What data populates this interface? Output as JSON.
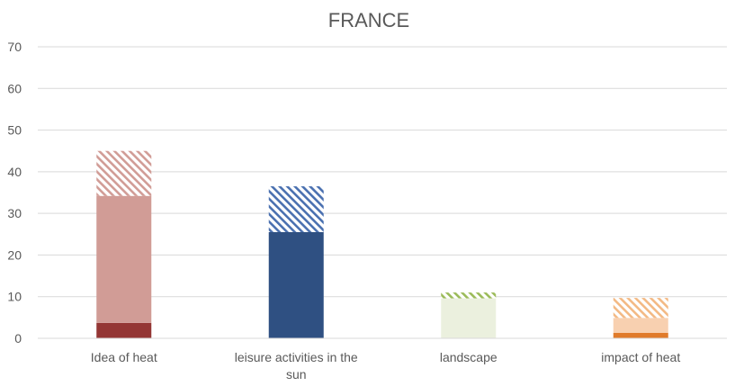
{
  "chart_data": {
    "type": "bar",
    "title": "FRANCE",
    "xlabel": "",
    "ylabel": "",
    "ylim": [
      0,
      70
    ],
    "yticks": [
      0,
      10,
      20,
      30,
      40,
      50,
      60,
      70
    ],
    "grid": true,
    "legend": "none",
    "categories": [
      [
        "Idea of heat"
      ],
      [
        "leisure activities in the",
        "sun"
      ],
      [
        "landscape"
      ],
      [
        "impact of heat"
      ]
    ],
    "stacks": [
      {
        "segments": [
          {
            "value": 3.7,
            "color": "#943634",
            "style": "solid"
          },
          {
            "value": 30.5,
            "color": "#d19c96",
            "style": "solid"
          },
          {
            "value": 10.8,
            "color": "#d19c96",
            "style": "hatched"
          }
        ]
      },
      {
        "segments": [
          {
            "value": 25.5,
            "color": "#2f5082",
            "style": "solid"
          },
          {
            "value": 11.0,
            "color": "#4a70b0",
            "style": "hatched"
          }
        ]
      },
      {
        "segments": [
          {
            "value": 9.6,
            "color": "#ebf0de",
            "style": "solid"
          },
          {
            "value": 1.4,
            "color": "#9bbb59",
            "style": "hatched"
          }
        ]
      },
      {
        "segments": [
          {
            "value": 1.3,
            "color": "#e07b2b",
            "style": "solid"
          },
          {
            "value": 3.6,
            "color": "#f8d0b0",
            "style": "solid"
          },
          {
            "value": 4.8,
            "color": "#f3b984",
            "style": "hatched"
          }
        ]
      }
    ]
  }
}
